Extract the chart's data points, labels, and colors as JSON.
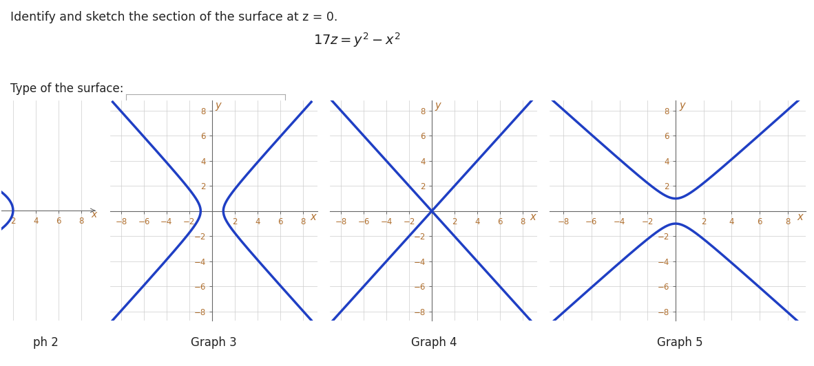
{
  "title_text": "Identify and sketch the section of the surface at z = 0.",
  "type_label": "Type of the surface:",
  "graph_labels": [
    "ph 2",
    "Graph 3",
    "Graph 4",
    "Graph 5"
  ],
  "tick_vals": [
    -8,
    -6,
    -4,
    -2,
    2,
    4,
    6,
    8
  ],
  "line_color": "#1f3fc4",
  "line_width": 2.5,
  "grid_color": "#cccccc",
  "axis_color": "#666666",
  "text_color": "#222222",
  "label_color": "#b07030",
  "bg_color": "#ffffff",
  "dropdown_border": "#aaaaaa",
  "graph3_type": "hyperbola_x",
  "graph4_type": "lines_x",
  "graph5_type": "hyperbola_y"
}
